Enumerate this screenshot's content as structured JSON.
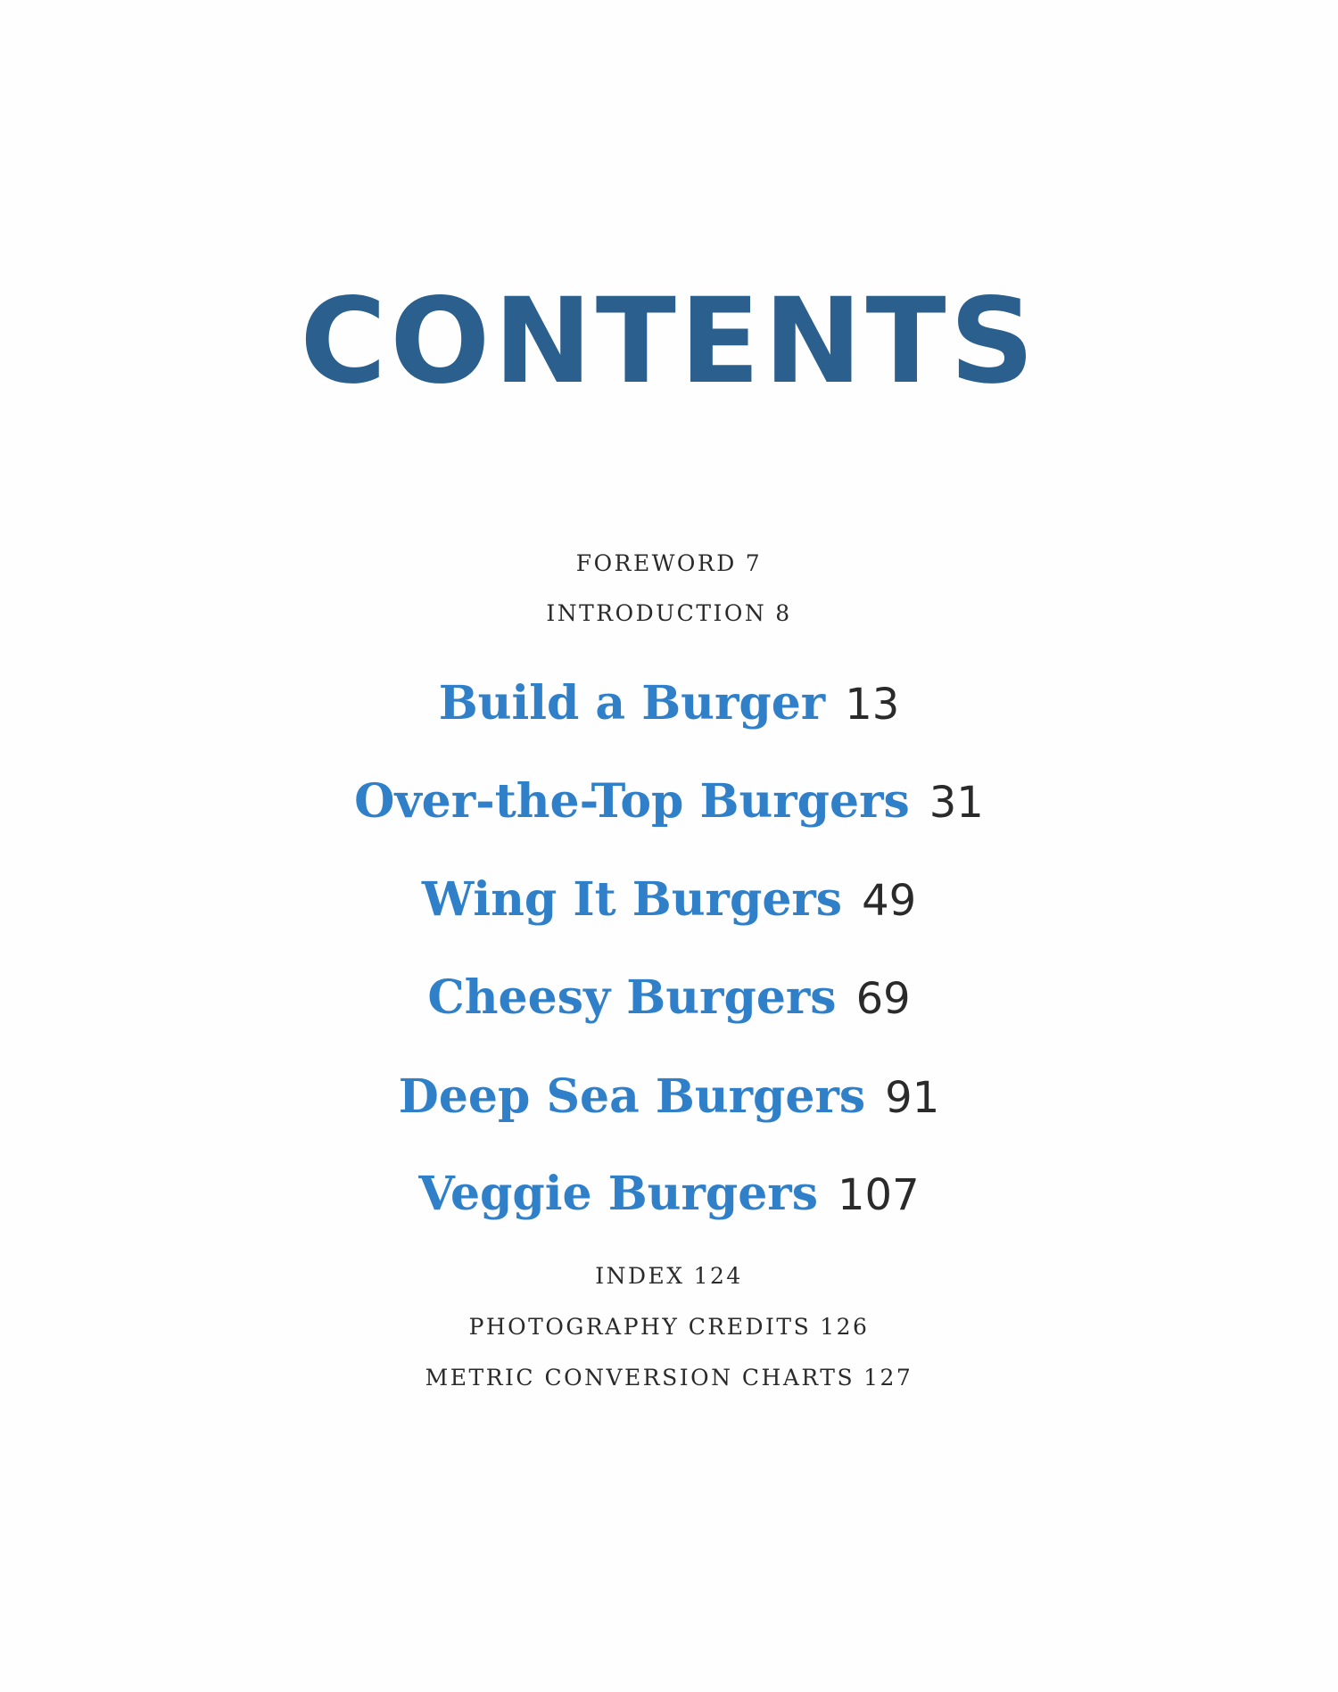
{
  "title": "CONTENTS",
  "front_matter": [
    {
      "label": "FOREWORD",
      "page": "7"
    },
    {
      "label": "INTRODUCTION",
      "page": "8"
    }
  ],
  "chapters": [
    {
      "label": "Build a Burger",
      "page": "13"
    },
    {
      "label": "Over-the-Top Burgers",
      "page": "31"
    },
    {
      "label": "Wing It Burgers",
      "page": "49"
    },
    {
      "label": "Cheesy Burgers",
      "page": "69"
    },
    {
      "label": "Deep Sea Burgers",
      "page": "91"
    },
    {
      "label": "Veggie Burgers",
      "page": "107"
    }
  ],
  "back_matter": [
    {
      "label": "INDEX",
      "page": "124"
    },
    {
      "label": "PHOTOGRAPHY CREDITS",
      "page": "126"
    },
    {
      "label": "METRIC CONVERSION CHARTS",
      "page": "127"
    }
  ],
  "colors": {
    "title": "#2b5f8e",
    "chapter": "#2f80c9",
    "text": "#2a2a2a"
  }
}
